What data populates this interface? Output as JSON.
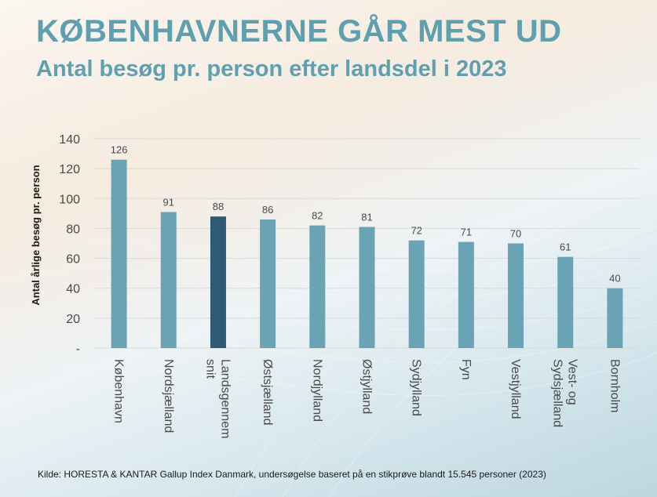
{
  "header": {
    "title": "KØBENHAVNERNE GÅR MEST UD",
    "subtitle": "Antal besøg pr. person efter landsdel i 2023"
  },
  "footer": {
    "source": "Kilde: HORESTA & KANTAR Gallup Index Danmark, undersøgelse baseret på en stikprøve blandt 15.545 personer (2023)"
  },
  "colors": {
    "accent": "#5e9fb0",
    "bar": "#6aa3b4",
    "bar_highlight": "#305a75"
  },
  "chart_data": {
    "type": "bar",
    "title": "",
    "xlabel": "",
    "ylabel": "Antal årlige besøg pr. person",
    "ylim": [
      0,
      140
    ],
    "yticks": [
      0,
      20,
      40,
      60,
      80,
      100,
      120,
      140
    ],
    "ytick_labels": [
      "-",
      "20",
      "40",
      "60",
      "80",
      "100",
      "120",
      "140"
    ],
    "grid": true,
    "categories": [
      [
        "København"
      ],
      [
        "Nordsjælland"
      ],
      [
        "Landsgennem",
        "snit"
      ],
      [
        "Østsjælland"
      ],
      [
        "Nordjylland"
      ],
      [
        "Østjylland"
      ],
      [
        "Sydjylland"
      ],
      [
        "Fyn"
      ],
      [
        "Vestjylland"
      ],
      [
        "Vest- og",
        "Sydsjælland"
      ],
      [
        "Bornholm"
      ]
    ],
    "values": [
      126,
      91,
      88,
      86,
      82,
      81,
      72,
      71,
      70,
      61,
      40
    ],
    "highlight_index": 2
  }
}
